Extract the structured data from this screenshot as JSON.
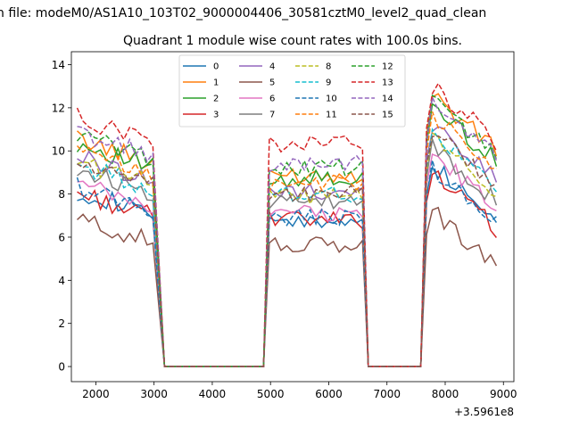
{
  "chart_data": {
    "type": "line",
    "suptitle": "n file: modeM0/AS1A10_103T02_9000004406_30581cztM0_level2_quad_clean",
    "title": "Quadrant 1 module wise count rates with 100.0s bins.",
    "xlabel": "",
    "ylabel": "",
    "x_offset_label": "+3.5961e8",
    "xlim": [
      1580,
      9180
    ],
    "ylim": [
      -0.7,
      14.6
    ],
    "xticks": [
      2000,
      3000,
      4000,
      5000,
      6000,
      7000,
      8000,
      9000
    ],
    "yticks": [
      0,
      2,
      4,
      6,
      8,
      10,
      12,
      14
    ],
    "grid": false,
    "legend": {
      "placement": "top-center",
      "columns": 4
    },
    "segments": [
      {
        "start": 1680,
        "count": 14,
        "step": 100
      },
      {
        "start": 3180,
        "count": 17,
        "step": 100
      },
      {
        "start": 4880,
        "count": 18,
        "step": 100
      },
      {
        "start": 6680,
        "count": 10,
        "step": 100
      },
      {
        "start": 7580,
        "count": 14,
        "step": 100
      }
    ],
    "series": [
      {
        "name": "0",
        "color": "#1f77b4",
        "dash": false,
        "g1": 7.6,
        "g2": 6.7,
        "g3": 9.4
      },
      {
        "name": "1",
        "color": "#ff7f0e",
        "dash": false,
        "g1": 10.0,
        "g2": 8.9,
        "g3": 12.6
      },
      {
        "name": "2",
        "color": "#2ca02c",
        "dash": false,
        "g1": 9.8,
        "g2": 8.7,
        "g3": 12.1
      },
      {
        "name": "3",
        "color": "#d62728",
        "dash": false,
        "g1": 7.5,
        "g2": 6.8,
        "g3": 9.0
      },
      {
        "name": "4",
        "color": "#9467bd",
        "dash": false,
        "g1": 9.2,
        "g2": 8.1,
        "g3": 11.3
      },
      {
        "name": "5",
        "color": "#8c564b",
        "dash": false,
        "g1": 6.3,
        "g2": 5.6,
        "g3": 7.2
      },
      {
        "name": "6",
        "color": "#e377c2",
        "dash": false,
        "g1": 7.9,
        "g2": 7.1,
        "g3": 9.9
      },
      {
        "name": "7",
        "color": "#7f7f7f",
        "dash": false,
        "g1": 8.6,
        "g2": 7.6,
        "g3": 10.3
      },
      {
        "name": "8",
        "color": "#bcbd22",
        "dash": true,
        "g1": 9.0,
        "g2": 7.9,
        "g3": 10.6
      },
      {
        "name": "9",
        "color": "#17becf",
        "dash": true,
        "g1": 8.8,
        "g2": 8.0,
        "g3": 10.8
      },
      {
        "name": "10",
        "color": "#1f77b4",
        "dash": true,
        "g1": 7.8,
        "g2": 6.9,
        "g3": 9.2
      },
      {
        "name": "11",
        "color": "#ff7f0e",
        "dash": true,
        "g1": 9.4,
        "g2": 8.5,
        "g3": 11.6
      },
      {
        "name": "12",
        "color": "#2ca02c",
        "dash": true,
        "g1": 10.2,
        "g2": 9.2,
        "g3": 12.4
      },
      {
        "name": "13",
        "color": "#d62728",
        "dash": true,
        "g1": 11.0,
        "g2": 10.3,
        "g3": 13.0
      },
      {
        "name": "14",
        "color": "#9467bd",
        "dash": true,
        "g1": 10.3,
        "g2": 9.4,
        "g3": 12.2
      },
      {
        "name": "15",
        "color": "#8c564b",
        "dash": true,
        "g1": 8.9,
        "g2": 8.0,
        "g3": 11.0
      }
    ]
  }
}
